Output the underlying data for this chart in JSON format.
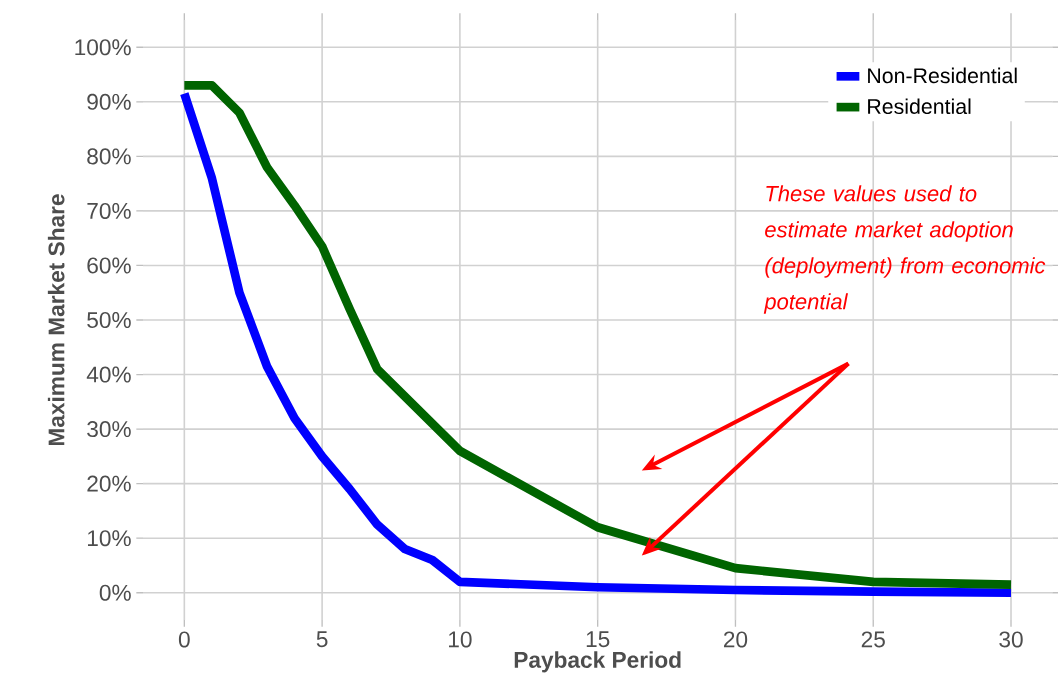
{
  "chart_data": {
    "type": "line",
    "xlabel": "Payback Period",
    "ylabel": "Maximum Market Share",
    "x": [
      0,
      1,
      2,
      3,
      4,
      5,
      6,
      7,
      8,
      9,
      10,
      15,
      20,
      25,
      30
    ],
    "series": [
      {
        "name": "Non-Residential",
        "color": "#0000ff",
        "values": [
          91.5,
          76,
          55,
          41.5,
          32,
          25,
          19,
          12.5,
          8,
          6,
          2,
          1,
          0.5,
          0.2,
          0
        ]
      },
      {
        "name": "Residential",
        "color": "#006400",
        "values": [
          93,
          93,
          88,
          78,
          71,
          63.5,
          52,
          41,
          36,
          31,
          26,
          12,
          4.5,
          2,
          1.5
        ]
      }
    ],
    "xlim": [
      -1.5,
      31.5
    ],
    "ylim": [
      -5,
      105
    ],
    "xticks": [
      0,
      5,
      10,
      15,
      20,
      25,
      30
    ],
    "yticks": [
      {
        "value": 0,
        "label": "0%"
      },
      {
        "value": 10,
        "label": "10%"
      },
      {
        "value": 20,
        "label": "20%"
      },
      {
        "value": 30,
        "label": "30%"
      },
      {
        "value": 40,
        "label": "40%"
      },
      {
        "value": 50,
        "label": "50%"
      },
      {
        "value": 60,
        "label": "60%"
      },
      {
        "value": 70,
        "label": "70%"
      },
      {
        "value": 80,
        "label": "80%"
      },
      {
        "value": 90,
        "label": "90%"
      },
      {
        "value": 100,
        "label": "100%"
      }
    ],
    "grid": true,
    "legend": "top right",
    "annotations": [
      "These values used to estimate market adoption (deployment) from economic potential"
    ]
  }
}
